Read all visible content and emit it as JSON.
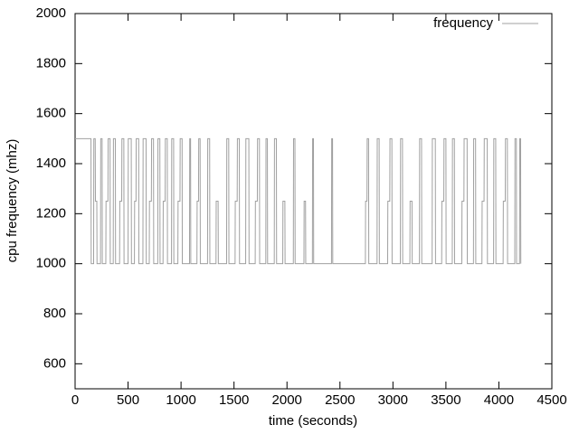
{
  "chart_data": {
    "type": "line",
    "xlabel": "time (seconds)",
    "ylabel": "cpu frequency (mhz)",
    "xlim": [
      0,
      4500
    ],
    "xticks": [
      0,
      500,
      1000,
      1500,
      2000,
      2500,
      3000,
      3500,
      4000,
      4500
    ],
    "ylim": [
      500,
      2000
    ],
    "yticks": [
      600,
      800,
      1000,
      1200,
      1400,
      1600,
      1800,
      2000
    ],
    "legend": "top-right",
    "x": [
      0,
      150,
      152,
      175,
      177,
      190,
      192,
      205,
      207,
      240,
      242,
      255,
      257,
      290,
      292,
      310,
      312,
      330,
      332,
      360,
      362,
      380,
      382,
      420,
      422,
      440,
      442,
      460,
      462,
      500,
      502,
      530,
      532,
      560,
      562,
      575,
      577,
      600,
      602,
      640,
      642,
      670,
      672,
      700,
      702,
      720,
      722,
      740,
      742,
      780,
      782,
      800,
      802,
      830,
      832,
      850,
      852,
      870,
      872,
      910,
      912,
      930,
      932,
      970,
      972,
      990,
      992,
      1010,
      1012,
      1080,
      1082,
      1090,
      1092,
      1150,
      1152,
      1165,
      1167,
      1180,
      1182,
      1250,
      1252,
      1270,
      1272,
      1330,
      1332,
      1350,
      1352,
      1430,
      1432,
      1450,
      1452,
      1510,
      1512,
      1530,
      1532,
      1550,
      1552,
      1610,
      1612,
      1640,
      1642,
      1700,
      1702,
      1720,
      1722,
      1740,
      1742,
      1800,
      1802,
      1815,
      1817,
      1880,
      1882,
      1900,
      1902,
      1960,
      1962,
      1980,
      1982,
      2060,
      2062,
      2075,
      2077,
      2160,
      2162,
      2175,
      2177,
      2240,
      2242,
      2250,
      2252,
      2420,
      2422,
      2430,
      2432,
      2740,
      2742,
      2755,
      2757,
      2770,
      2772,
      2850,
      2852,
      2870,
      2872,
      2950,
      2952,
      2970,
      2972,
      2990,
      2992,
      3070,
      3072,
      3090,
      3092,
      3160,
      3162,
      3180,
      3182,
      3250,
      3252,
      3270,
      3272,
      3370,
      3372,
      3400,
      3402,
      3460,
      3462,
      3480,
      3482,
      3500,
      3502,
      3560,
      3562,
      3580,
      3582,
      3650,
      3652,
      3670,
      3672,
      3700,
      3702,
      3760,
      3762,
      3780,
      3782,
      3840,
      3842,
      3860,
      3862,
      3890,
      3892,
      3950,
      3952,
      3970,
      3972,
      4040,
      4042,
      4060,
      4062,
      4080,
      4082,
      4150,
      4152,
      4165,
      4167,
      4195,
      4197,
      4205,
      4207
    ],
    "series": [
      {
        "name": "frequency",
        "color": "#a0a0a0",
        "values": [
          1500,
          1500,
          1000,
          1000,
          1500,
          1500,
          1250,
          1250,
          1000,
          1000,
          1500,
          1500,
          1000,
          1000,
          1250,
          1250,
          1500,
          1500,
          1000,
          1000,
          1500,
          1500,
          1000,
          1000,
          1250,
          1250,
          1500,
          1500,
          1000,
          1000,
          1500,
          1500,
          1000,
          1000,
          1250,
          1250,
          1500,
          1500,
          1000,
          1000,
          1500,
          1500,
          1000,
          1000,
          1250,
          1250,
          1500,
          1500,
          1000,
          1000,
          1500,
          1500,
          1000,
          1000,
          1250,
          1250,
          1500,
          1500,
          1000,
          1000,
          1500,
          1500,
          1000,
          1000,
          1250,
          1250,
          1500,
          1500,
          1000,
          1000,
          1500,
          1500,
          1000,
          1000,
          1250,
          1250,
          1500,
          1500,
          1000,
          1000,
          1500,
          1500,
          1000,
          1000,
          1250,
          1250,
          1000,
          1000,
          1500,
          1500,
          1000,
          1000,
          1250,
          1250,
          1500,
          1500,
          1000,
          1000,
          1500,
          1500,
          1000,
          1000,
          1250,
          1250,
          1500,
          1500,
          1000,
          1000,
          1500,
          1500,
          1000,
          1000,
          1500,
          1500,
          1000,
          1000,
          1250,
          1250,
          1000,
          1000,
          1500,
          1500,
          1000,
          1000,
          1250,
          1250,
          1000,
          1000,
          1500,
          1500,
          1000,
          1000,
          1500,
          1500,
          1000,
          1000,
          1250,
          1250,
          1500,
          1500,
          1000,
          1000,
          1500,
          1500,
          1000,
          1000,
          1250,
          1250,
          1500,
          1500,
          1000,
          1000,
          1500,
          1500,
          1000,
          1000,
          1250,
          1250,
          1000,
          1000,
          1500,
          1500,
          1000,
          1000,
          1500,
          1500,
          1000,
          1000,
          1250,
          1250,
          1500,
          1500,
          1000,
          1000,
          1500,
          1500,
          1000,
          1000,
          1250,
          1250,
          1500,
          1500,
          1000,
          1000,
          1500,
          1500,
          1000,
          1000,
          1250,
          1250,
          1500,
          1500,
          1000,
          1000,
          1500,
          1500,
          1000,
          1000,
          1250,
          1250,
          1500,
          1500,
          1000,
          1000,
          1500,
          1500,
          1000,
          1000,
          1500,
          1500,
          1000
        ]
      }
    ]
  }
}
